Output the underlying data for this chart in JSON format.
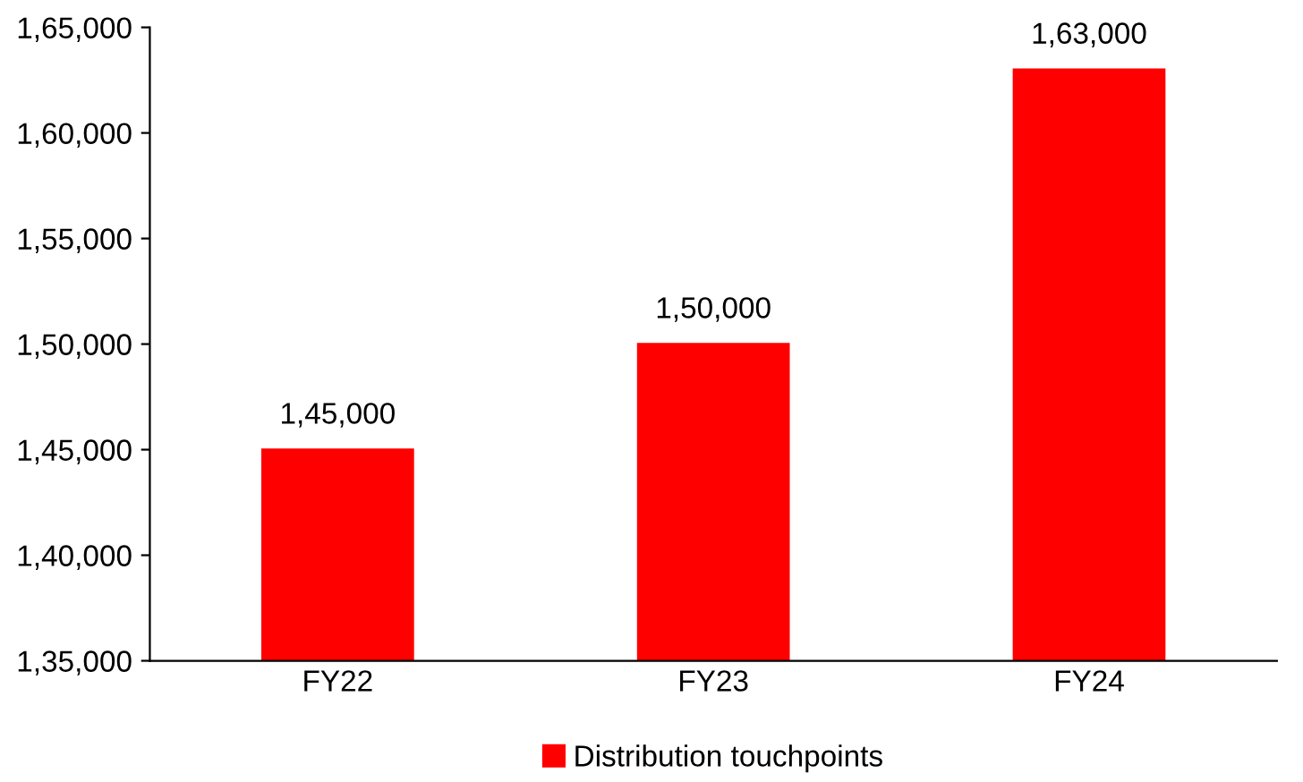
{
  "chart_data": {
    "type": "bar",
    "categories": [
      "FY22",
      "FY23",
      "FY24"
    ],
    "series": [
      {
        "name": "Distribution touchpoints",
        "color": "#ff0000",
        "values": [
          145000,
          150000,
          163000
        ],
        "value_labels": [
          "1,45,000",
          "1,50,000",
          "1,63,000"
        ]
      }
    ],
    "ylim": [
      135000,
      165000
    ],
    "yticks": [
      {
        "value": 135000,
        "label": "1,35,000"
      },
      {
        "value": 140000,
        "label": "1,40,000"
      },
      {
        "value": 145000,
        "label": "1,45,000"
      },
      {
        "value": 150000,
        "label": "1,50,000"
      },
      {
        "value": 155000,
        "label": "1,55,000"
      },
      {
        "value": 160000,
        "label": "1,60,000"
      },
      {
        "value": 165000,
        "label": "1,65,000"
      }
    ],
    "grid": false,
    "legend": "bottom"
  }
}
